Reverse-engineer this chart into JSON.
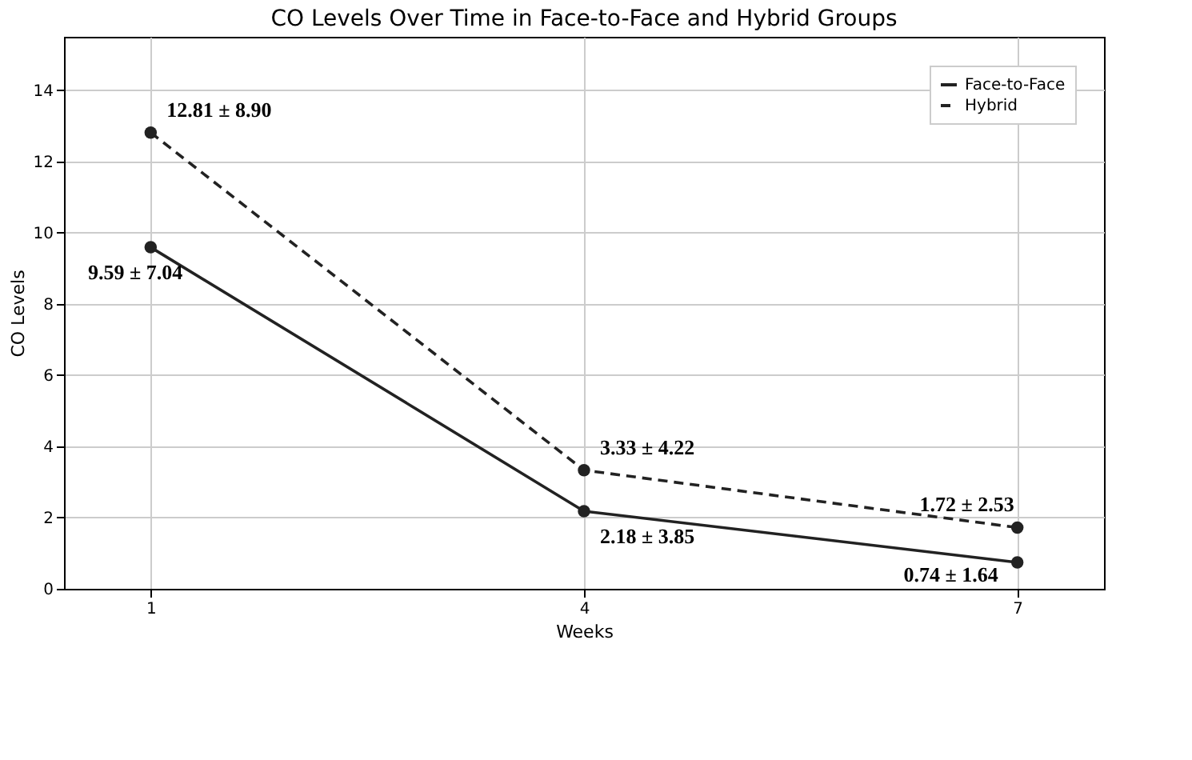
{
  "chart_data": {
    "type": "line",
    "title": "CO Levels Over Time in Face-to-Face and Hybrid Groups",
    "xlabel": "Weeks",
    "ylabel": "CO Levels",
    "x": [
      1,
      4,
      7
    ],
    "series": [
      {
        "name": "Face-to-Face",
        "color": "#222222",
        "values": [
          9.59,
          2.18,
          0.74
        ],
        "line_style": "solid"
      },
      {
        "name": "Hybrid",
        "color": "#222222",
        "values": [
          12.81,
          3.33,
          1.72
        ],
        "line_style": "dashed"
      }
    ],
    "xlim": [
      0.4,
      7.6
    ],
    "xticks": [
      {
        "value": 1,
        "label": "1"
      },
      {
        "value": 4,
        "label": "4"
      },
      {
        "value": 7,
        "label": "7"
      }
    ],
    "ylim": [
      0,
      15.5
    ],
    "yticks": [
      0,
      2,
      4,
      6,
      8,
      10,
      12,
      14
    ],
    "annotations": [
      {
        "text": "9.59 ± 7.04",
        "x": 1,
        "y": 9.59
      },
      {
        "text": "12.81 ± 8.90",
        "x": 1,
        "y": 12.81
      },
      {
        "text": "2.18 ± 3.85",
        "x": 4,
        "y": 2.18
      },
      {
        "text": "3.33 ± 4.22",
        "x": 4,
        "y": 3.33
      },
      {
        "text": "0.74 ± 1.64",
        "x": 7,
        "y": 0.74
      },
      {
        "text": "1.72 ± 2.53",
        "x": 7,
        "y": 1.72
      }
    ],
    "grid": true,
    "legend": "top right",
    "marker": "circle"
  }
}
